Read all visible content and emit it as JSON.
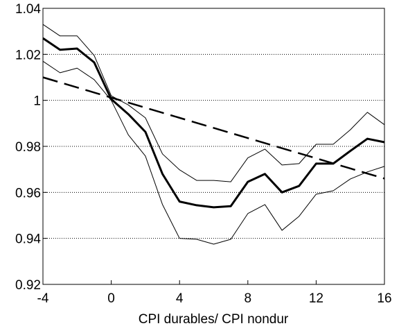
{
  "chart_data": {
    "type": "line",
    "xlabel": "CPI durables/ CPI nondur",
    "x": [
      -4,
      -3,
      -2,
      -1,
      0,
      1,
      2,
      3,
      4,
      5,
      6,
      7,
      8,
      9,
      10,
      11,
      12,
      13,
      14,
      15,
      16
    ],
    "series": [
      {
        "color": "#000000",
        "width": 3,
        "dash": "none",
        "values": [
          1.027,
          1.022,
          1.0225,
          1.0165,
          1.0005,
          0.994,
          0.9863,
          0.968,
          0.956,
          0.9544,
          0.9535,
          0.954,
          0.9646,
          0.968,
          0.96,
          0.9628,
          0.9725,
          0.9725,
          0.978,
          0.9833,
          0.9818
        ]
      },
      {
        "color": "#000000",
        "width": 1,
        "dash": "none",
        "values": [
          1.033,
          1.028,
          1.028,
          1.0195,
          1.002,
          0.998,
          0.9924,
          0.9767,
          0.9698,
          0.9652,
          0.9652,
          0.9646,
          0.975,
          0.9788,
          0.9719,
          0.9725,
          0.9809,
          0.9809,
          0.9872,
          0.9948,
          0.9894
        ]
      },
      {
        "color": "#000000",
        "width": 1,
        "dash": "none",
        "values": [
          1.017,
          1.012,
          1.014,
          1.009,
          1.0,
          0.985,
          0.9758,
          0.9547,
          0.94,
          0.9396,
          0.9375,
          0.9396,
          0.9508,
          0.9547,
          0.9435,
          0.9496,
          0.9592,
          0.9607,
          0.9658,
          0.9689,
          0.9713
        ]
      },
      {
        "color": "#000000",
        "width": 2.5,
        "dash": "22 10",
        "values": [
          1.01,
          1.0078,
          1.0056,
          1.0034,
          1.0012,
          0.999,
          0.9968,
          0.9946,
          0.9924,
          0.9902,
          0.988,
          0.9858,
          0.9836,
          0.9814,
          0.9792,
          0.977,
          0.9748,
          0.9726,
          0.9704,
          0.9682,
          0.966
        ]
      }
    ],
    "xlim": [
      -4,
      16
    ],
    "xticks": [
      -4,
      0,
      4,
      8,
      12,
      16
    ],
    "ylim": [
      0.92,
      1.04
    ],
    "yticks": [
      0.92,
      0.94,
      0.96,
      0.98,
      1,
      1.02,
      1.04
    ],
    "grid": true
  }
}
